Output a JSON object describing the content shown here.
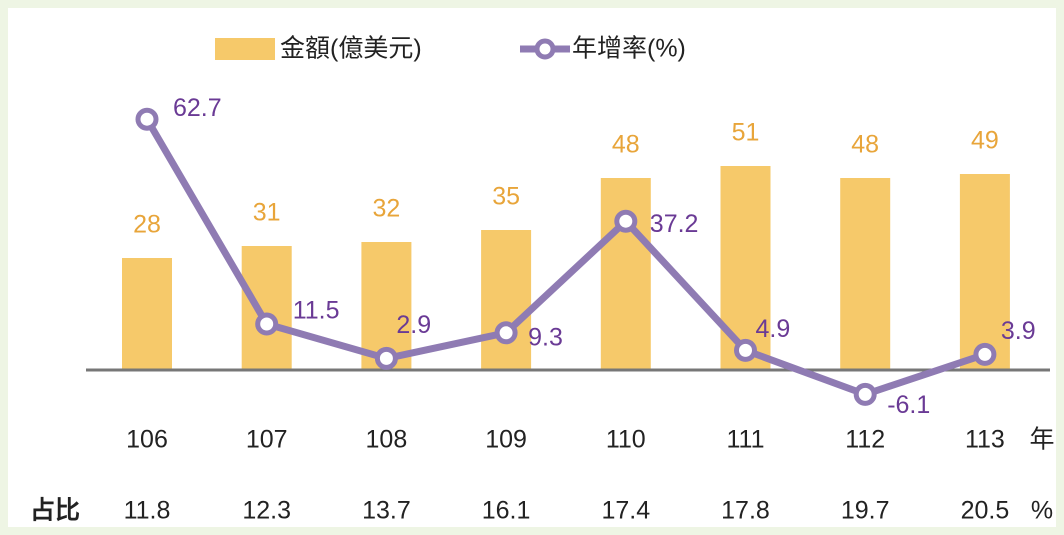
{
  "chart_data": {
    "type": "bar",
    "categories": [
      "106",
      "107",
      "108",
      "109",
      "110",
      "111",
      "112",
      "113"
    ],
    "x_unit": "年",
    "series": [
      {
        "name": "金額(億美元)",
        "type": "bar",
        "color": "#f6c96a",
        "label_color": "#e8a53a",
        "values": [
          28,
          31,
          32,
          35,
          48,
          51,
          48,
          49
        ]
      },
      {
        "name": "年增率(%)",
        "type": "line",
        "axis": "y2",
        "color": "#8f7bb3",
        "label_color": "#6a3a95",
        "values": [
          62.7,
          11.5,
          2.9,
          9.3,
          37.2,
          4.9,
          -6.1,
          3.9
        ]
      }
    ],
    "ylim": [
      -12,
      68
    ],
    "y2lim": [
      -12,
      68
    ],
    "share": {
      "label": "占比",
      "values": [
        "11.8",
        "12.3",
        "13.7",
        "16.1",
        "17.4",
        "17.8",
        "19.7",
        "20.5"
      ],
      "unit": "%"
    }
  }
}
